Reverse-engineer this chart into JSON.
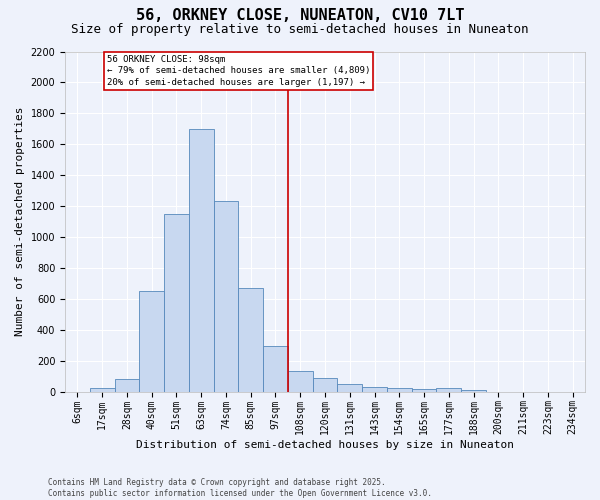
{
  "title": "56, ORKNEY CLOSE, NUNEATON, CV10 7LT",
  "subtitle": "Size of property relative to semi-detached houses in Nuneaton",
  "xlabel": "Distribution of semi-detached houses by size in Nuneaton",
  "ylabel": "Number of semi-detached properties",
  "categories": [
    "6sqm",
    "17sqm",
    "28sqm",
    "40sqm",
    "51sqm",
    "63sqm",
    "74sqm",
    "85sqm",
    "97sqm",
    "108sqm",
    "120sqm",
    "131sqm",
    "143sqm",
    "154sqm",
    "165sqm",
    "177sqm",
    "188sqm",
    "200sqm",
    "211sqm",
    "223sqm",
    "234sqm"
  ],
  "values": [
    0,
    25,
    80,
    650,
    1150,
    1700,
    1230,
    670,
    295,
    130,
    85,
    48,
    30,
    25,
    15,
    20,
    10,
    0,
    0,
    0,
    0
  ],
  "bar_color": "#c8d8f0",
  "bar_edge_color": "#5588bb",
  "vline_color": "#cc0000",
  "annotation_text": "56 ORKNEY CLOSE: 98sqm\n← 79% of semi-detached houses are smaller (4,809)\n20% of semi-detached houses are larger (1,197) →",
  "annotation_box_color": "#cc0000",
  "ylim": [
    0,
    2200
  ],
  "yticks": [
    0,
    200,
    400,
    600,
    800,
    1000,
    1200,
    1400,
    1600,
    1800,
    2000,
    2200
  ],
  "background_color": "#eef2fb",
  "grid_color": "#ffffff",
  "footer_line1": "Contains HM Land Registry data © Crown copyright and database right 2025.",
  "footer_line2": "Contains public sector information licensed under the Open Government Licence v3.0.",
  "title_fontsize": 11,
  "subtitle_fontsize": 9,
  "axis_label_fontsize": 8,
  "tick_fontsize": 7,
  "footer_fontsize": 5.5
}
